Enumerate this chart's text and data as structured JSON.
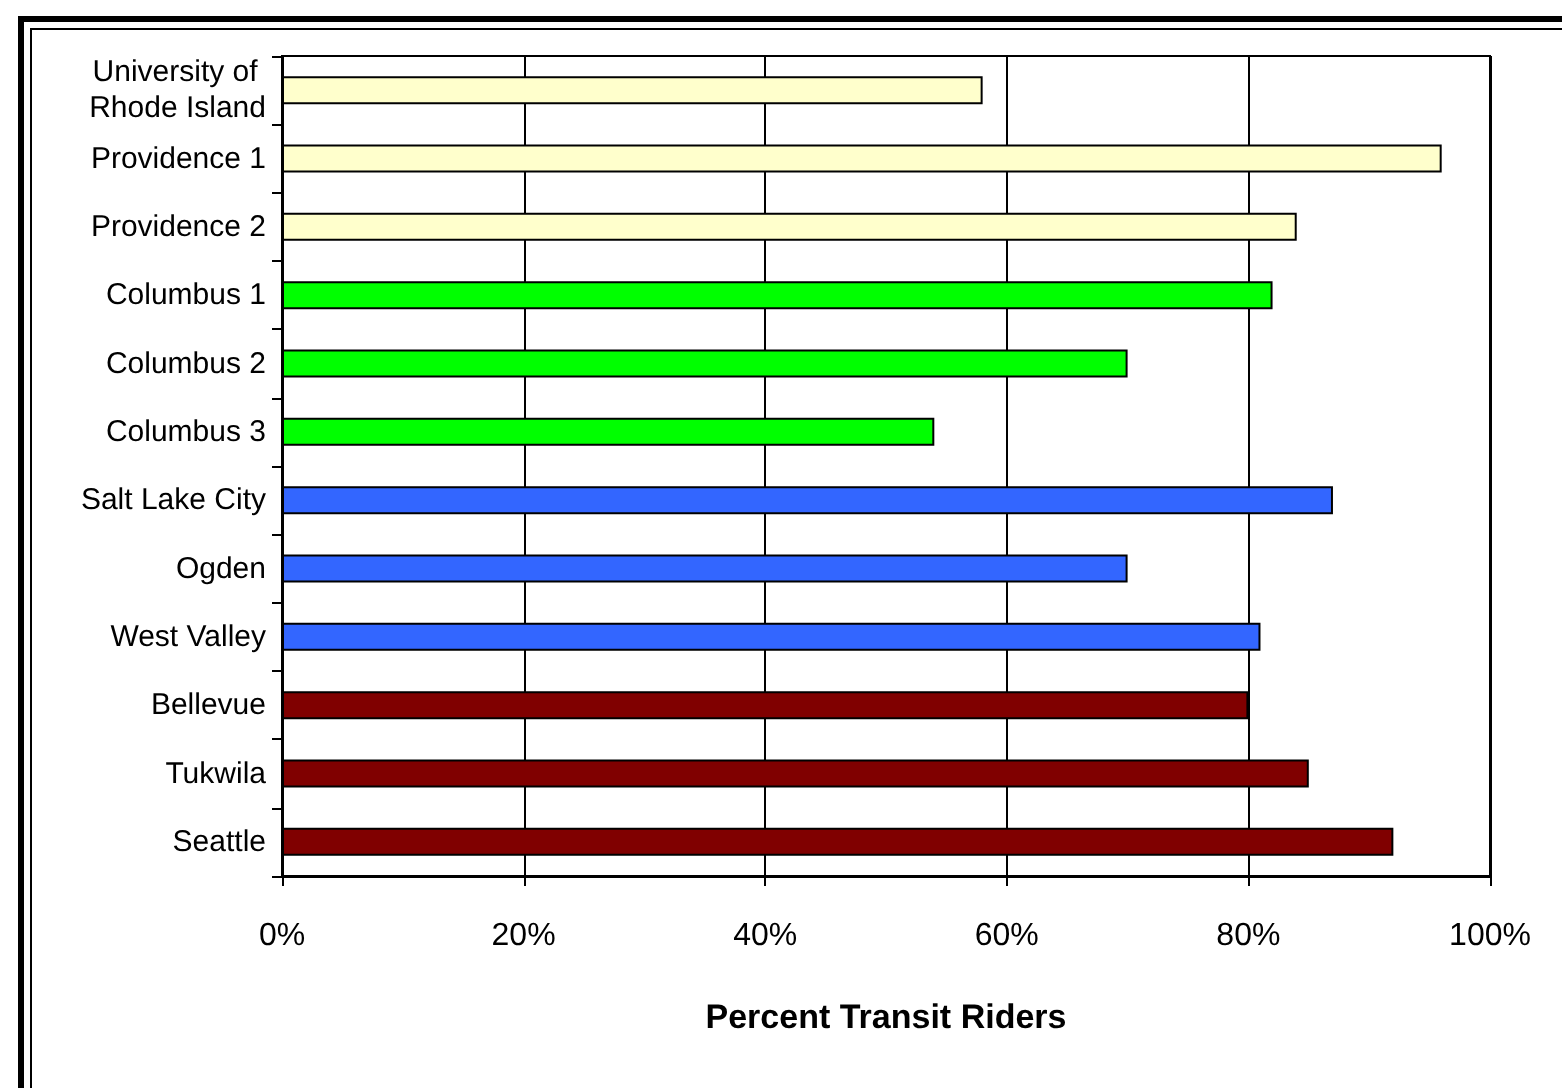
{
  "chart_data": {
    "type": "bar",
    "orientation": "horizontal",
    "xlabel": "Percent Transit Riders",
    "categories": [
      "University of Rhode Island",
      "Providence 1",
      "Providence 2",
      "Columbus 1",
      "Columbus 2",
      "Columbus 3",
      "Salt Lake City",
      "Ogden",
      "West Valley",
      "Bellevue",
      "Tukwila",
      "Seattle"
    ],
    "values": [
      58,
      96,
      84,
      82,
      70,
      54,
      87,
      70,
      81,
      80,
      85,
      92
    ],
    "colors": [
      "#ffffcc",
      "#ffffcc",
      "#ffffcc",
      "#00ff00",
      "#00ff00",
      "#00ff00",
      "#3366ff",
      "#3366ff",
      "#3366ff",
      "#800000",
      "#800000",
      "#800000"
    ],
    "xlim": [
      0,
      100
    ],
    "xticks": [
      {
        "value": 0,
        "label": "0%"
      },
      {
        "value": 20,
        "label": "20%"
      },
      {
        "value": 40,
        "label": "40%"
      },
      {
        "value": 60,
        "label": "60%"
      },
      {
        "value": 80,
        "label": "80%"
      },
      {
        "value": 100,
        "label": "100%"
      }
    ],
    "grid": "x"
  }
}
